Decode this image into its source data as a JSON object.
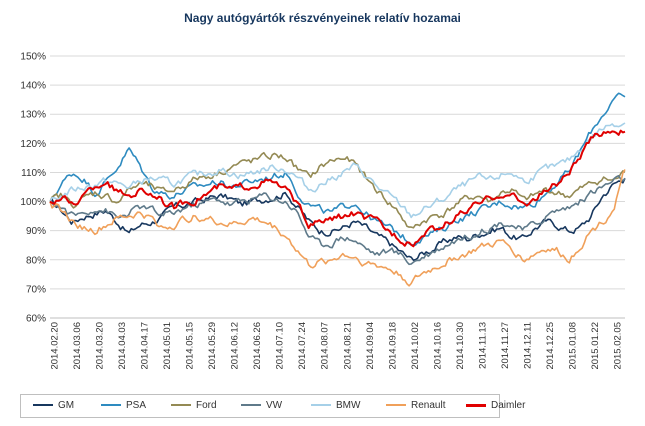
{
  "chart_data": {
    "type": "line",
    "title": "Nagy autógyártók részvényeinek  relatív hozamai",
    "xlabel": "",
    "ylabel": "",
    "ylim": [
      0.6,
      1.5
    ],
    "yticks": [
      "60%",
      "70%",
      "80%",
      "90%",
      "100%",
      "110%",
      "120%",
      "130%",
      "140%",
      "150%"
    ],
    "x_ticks": [
      "2014.02.20",
      "2014.03.06",
      "2014.03.20",
      "2014.04.03",
      "2014.04.17",
      "2014.05.01",
      "2014.05.15",
      "2014.05.29",
      "2014.06.12",
      "2014.06.26",
      "2014.07.10",
      "2014.07.24",
      "2014.08.07",
      "2014.08.21",
      "2014.09.04",
      "2014.09.18",
      "2014.10.02",
      "2014.10.16",
      "2014.10.30",
      "2014.11.13",
      "2014.11.27",
      "2014.12.11",
      "2014.12.25",
      "2015.01.08",
      "2015.01.22",
      "2015.02.05"
    ],
    "grid": "horizontal",
    "legend_position": "bottom",
    "series": [
      {
        "name": "GM",
        "color": "#17375e",
        "keys": [
          1.0,
          0.97,
          0.93,
          0.95,
          0.96,
          0.97,
          0.93,
          0.89,
          0.92,
          0.93,
          0.95,
          0.98,
          0.99,
          1.0,
          1.01,
          1.02,
          1.01,
          0.99,
          1.0,
          1.01,
          1.02,
          1.03,
          0.98,
          0.93,
          0.9,
          0.9,
          0.91,
          0.93,
          0.91,
          0.88,
          0.86,
          0.83,
          0.8,
          0.82,
          0.84,
          0.86,
          0.88,
          0.87,
          0.89,
          0.9,
          0.91,
          0.88,
          0.87,
          0.91,
          0.93,
          0.92,
          0.9,
          0.91,
          0.95,
          1.02,
          1.06,
          1.08
        ]
      },
      {
        "name": "PSA",
        "color": "#2e8bc0",
        "keys": [
          1.0,
          1.06,
          1.1,
          1.08,
          1.03,
          1.07,
          1.12,
          1.18,
          1.12,
          1.05,
          1.03,
          1.02,
          1.04,
          1.05,
          1.06,
          1.07,
          1.05,
          1.06,
          1.07,
          1.08,
          1.09,
          1.1,
          1.03,
          0.99,
          0.97,
          0.96,
          0.98,
          1.0,
          0.96,
          0.93,
          0.91,
          0.89,
          0.86,
          0.88,
          0.89,
          0.91,
          0.94,
          0.95,
          0.97,
          0.98,
          1.0,
          0.99,
          0.98,
          1.0,
          1.03,
          1.07,
          1.1,
          1.17,
          1.24,
          1.3,
          1.35,
          1.36
        ]
      },
      {
        "name": "Ford",
        "color": "#948a54",
        "keys": [
          1.0,
          1.02,
          0.99,
          1.01,
          1.03,
          1.02,
          1.0,
          1.04,
          1.06,
          1.05,
          1.03,
          1.04,
          1.06,
          1.08,
          1.09,
          1.1,
          1.12,
          1.13,
          1.14,
          1.15,
          1.16,
          1.15,
          1.11,
          1.08,
          1.12,
          1.14,
          1.15,
          1.13,
          1.08,
          1.04,
          1.0,
          0.96,
          0.9,
          0.93,
          0.95,
          0.96,
          0.99,
          1.01,
          1.02,
          1.0,
          1.03,
          1.04,
          1.0,
          1.02,
          1.04,
          1.03,
          1.02,
          1.04,
          1.06,
          1.08,
          1.07,
          1.1
        ]
      },
      {
        "name": "VW",
        "color": "#5f7a8a",
        "keys": [
          1.0,
          0.98,
          0.95,
          0.96,
          0.98,
          0.97,
          0.94,
          0.96,
          0.98,
          0.97,
          0.95,
          0.96,
          0.98,
          0.99,
          1.0,
          1.01,
          0.99,
          1.0,
          1.01,
          1.02,
          1.01,
          1.0,
          0.96,
          0.88,
          0.85,
          0.86,
          0.88,
          0.87,
          0.84,
          0.82,
          0.83,
          0.82,
          0.79,
          0.81,
          0.83,
          0.85,
          0.87,
          0.88,
          0.9,
          0.91,
          0.93,
          0.92,
          0.9,
          0.92,
          0.95,
          0.97,
          0.98,
          1.0,
          1.03,
          1.05,
          1.07,
          1.08
        ]
      },
      {
        "name": "BMW",
        "color": "#a6d0e8",
        "keys": [
          1.0,
          1.02,
          1.04,
          1.05,
          1.06,
          1.07,
          1.06,
          1.05,
          1.07,
          1.08,
          1.07,
          1.06,
          1.08,
          1.09,
          1.1,
          1.11,
          1.1,
          1.09,
          1.1,
          1.11,
          1.12,
          1.11,
          1.08,
          1.04,
          1.06,
          1.08,
          1.1,
          1.12,
          1.09,
          1.05,
          1.02,
          0.99,
          0.95,
          0.97,
          0.99,
          1.01,
          1.04,
          1.06,
          1.08,
          1.07,
          1.09,
          1.1,
          1.07,
          1.09,
          1.11,
          1.12,
          1.14,
          1.18,
          1.22,
          1.25,
          1.27,
          1.27
        ]
      },
      {
        "name": "Renault",
        "color": "#f0a05a",
        "keys": [
          1.0,
          0.97,
          0.93,
          0.91,
          0.9,
          0.92,
          0.94,
          0.95,
          0.96,
          0.94,
          0.91,
          0.92,
          0.94,
          0.95,
          0.94,
          0.93,
          0.92,
          0.93,
          0.94,
          0.93,
          0.91,
          0.88,
          0.83,
          0.78,
          0.79,
          0.8,
          0.82,
          0.81,
          0.79,
          0.78,
          0.77,
          0.75,
          0.72,
          0.75,
          0.77,
          0.79,
          0.81,
          0.82,
          0.84,
          0.85,
          0.86,
          0.84,
          0.8,
          0.82,
          0.84,
          0.83,
          0.8,
          0.85,
          0.9,
          0.93,
          0.98,
          1.11
        ]
      },
      {
        "name": "Daimler",
        "color": "#e00000",
        "keys": [
          1.0,
          1.01,
          0.99,
          1.02,
          1.05,
          1.07,
          1.03,
          1.02,
          1.04,
          1.03,
          1.0,
          0.98,
          1.0,
          1.01,
          1.03,
          1.05,
          1.04,
          1.05,
          1.06,
          1.07,
          1.06,
          1.04,
          0.98,
          0.92,
          0.93,
          0.94,
          0.95,
          0.96,
          0.94,
          0.93,
          0.9,
          0.88,
          0.85,
          0.88,
          0.9,
          0.92,
          0.95,
          0.97,
          0.99,
          1.01,
          1.03,
          1.02,
          0.99,
          1.01,
          1.04,
          1.06,
          1.1,
          1.15,
          1.21,
          1.24,
          1.25,
          1.24
        ]
      }
    ]
  }
}
